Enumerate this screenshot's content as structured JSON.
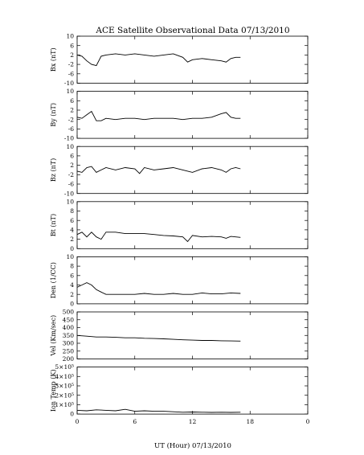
{
  "title": "ACE Satellite Observational Data   07/13/2010",
  "xlabel": "UT (Hour)   07/13/2010",
  "chart_data": [
    {
      "type": "line",
      "ylabel": "Bx (nT)",
      "ylim": [
        -10,
        10
      ],
      "yticks": [
        "-10",
        "-8",
        "-6",
        "-4",
        "-2",
        "0",
        "2",
        "4",
        "6",
        "8",
        "10"
      ],
      "ytick_labels": [
        "10",
        "6",
        "2",
        "-2",
        "-6",
        "-10"
      ],
      "xlim": [
        0,
        24
      ],
      "x": [
        0,
        0.5,
        1,
        1.5,
        2,
        2.5,
        3,
        4,
        5,
        6,
        7,
        8,
        9,
        10,
        11,
        11.5,
        12,
        13,
        14,
        15,
        15.5,
        16,
        16.5,
        17
      ],
      "values": [
        2,
        1.5,
        -0.5,
        -2,
        -2.5,
        1.5,
        2,
        2.5,
        2,
        2.5,
        2,
        1.5,
        2,
        2.5,
        1,
        -1,
        0,
        0.5,
        0,
        -0.5,
        -1,
        0.5,
        1,
        1
      ]
    },
    {
      "type": "line",
      "ylabel": "By (nT)",
      "ylim": [
        -10,
        10
      ],
      "ytick_labels": [
        "10",
        "6",
        "2",
        "-2",
        "-6",
        "-10"
      ],
      "xlim": [
        0,
        24
      ],
      "x": [
        0,
        0.5,
        1,
        1.5,
        2,
        2.5,
        3,
        4,
        5,
        6,
        7,
        8,
        9,
        10,
        11,
        12,
        13,
        14,
        15,
        15.5,
        16,
        16.5,
        17
      ],
      "values": [
        -1,
        -1.5,
        0,
        1.5,
        -2.5,
        -2.5,
        -1.5,
        -2,
        -1.5,
        -1.5,
        -2,
        -1.5,
        -1.5,
        -1.5,
        -2,
        -1.5,
        -1.5,
        -1,
        0.5,
        1,
        -1,
        -1.5,
        -1.5
      ]
    },
    {
      "type": "line",
      "ylabel": "Bz (nT)",
      "ylim": [
        -10,
        10
      ],
      "ytick_labels": [
        "10",
        "6",
        "2",
        "-2",
        "-6",
        "-10"
      ],
      "xlim": [
        0,
        24
      ],
      "x": [
        0,
        0.5,
        1,
        1.5,
        2,
        2.5,
        3,
        4,
        5,
        6,
        6.5,
        7,
        8,
        9,
        10,
        11,
        12,
        13,
        14,
        15,
        15.5,
        16,
        16.5,
        17
      ],
      "values": [
        -0.5,
        -1,
        1,
        1.5,
        -1,
        0,
        1,
        0,
        1,
        0.5,
        -1.5,
        1,
        0,
        0.5,
        1,
        0,
        -1,
        0.5,
        1,
        0,
        -1,
        0.5,
        1,
        0.5
      ]
    },
    {
      "type": "line",
      "ylabel": "Bt (nT)",
      "ylim": [
        0,
        10
      ],
      "ytick_labels": [
        "10",
        "8",
        "6",
        "4",
        "2",
        "0"
      ],
      "xlim": [
        0,
        24
      ],
      "x": [
        0,
        0.5,
        1,
        1.5,
        2,
        2.5,
        3,
        4,
        5,
        6,
        7,
        8,
        9,
        10,
        11,
        11.5,
        12,
        13,
        14,
        15,
        15.5,
        16,
        16.5,
        17
      ],
      "values": [
        3,
        3.5,
        2.5,
        3.5,
        2.5,
        2,
        3.5,
        3.5,
        3.2,
        3.2,
        3.2,
        3,
        2.8,
        2.7,
        2.5,
        1.5,
        2.8,
        2.5,
        2.6,
        2.5,
        2.2,
        2.6,
        2.5,
        2.4
      ]
    },
    {
      "type": "line",
      "ylabel": "Den (1/CC)",
      "ylim": [
        0,
        10
      ],
      "ytick_labels": [
        "10",
        "8",
        "6",
        "4",
        "2",
        "0"
      ],
      "xlim": [
        0,
        24
      ],
      "x": [
        0,
        0.5,
        1,
        1.5,
        2,
        2.5,
        3,
        4,
        5,
        6,
        7,
        8,
        9,
        10,
        11,
        12,
        13,
        14,
        15,
        16,
        17
      ],
      "values": [
        3.5,
        4,
        4.5,
        4,
        3,
        2.5,
        2,
        2,
        2,
        2,
        2.2,
        2,
        2,
        2.2,
        2,
        2,
        2.3,
        2.1,
        2.1,
        2.3,
        2.2
      ]
    },
    {
      "type": "line",
      "ylabel": "Vel (Km/sec)",
      "ylim": [
        200,
        500
      ],
      "ytick_labels": [
        "500",
        "450",
        "400",
        "350",
        "300",
        "250",
        "200"
      ],
      "xlim": [
        0,
        24
      ],
      "x": [
        0,
        1,
        2,
        3,
        4,
        5,
        6,
        7,
        8,
        9,
        10,
        11,
        12,
        13,
        14,
        15,
        16,
        17
      ],
      "values": [
        350,
        345,
        340,
        340,
        338,
        335,
        335,
        332,
        330,
        328,
        325,
        322,
        320,
        318,
        318,
        316,
        315,
        314
      ]
    },
    {
      "type": "line",
      "ylabel": "Ion Temp (K)",
      "ylim": [
        0,
        500000
      ],
      "ytick_labels": [
        "5×10⁵",
        "4×10⁵",
        "3×10⁵",
        "2×10⁵",
        "1×10⁵",
        "0"
      ],
      "xlim": [
        0,
        24
      ],
      "x": [
        0,
        1,
        2,
        3,
        4,
        5,
        6,
        7,
        8,
        9,
        10,
        11,
        12,
        13,
        14,
        15,
        16,
        17
      ],
      "values": [
        40000,
        35000,
        45000,
        40000,
        35000,
        50000,
        30000,
        35000,
        30000,
        30000,
        25000,
        20000,
        22000,
        20000,
        18000,
        20000,
        18000,
        20000
      ]
    }
  ],
  "x_tick_labels": [
    "0",
    "6",
    "12",
    "18",
    "0"
  ]
}
